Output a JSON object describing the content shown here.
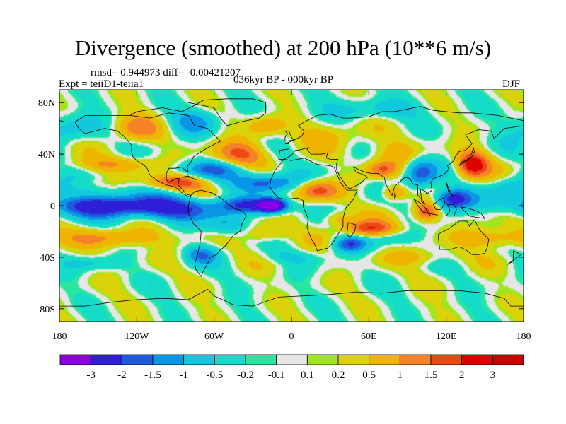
{
  "title": "Divergence (smoothed) at 200 hPa (10**6 m/s)",
  "stats": "rmsd= 0.944973 diff= -0.00421207",
  "experiment": "Expt = teiiD1-teiia1",
  "period": "036kyr BP - 000kyr BP",
  "season": "DJF",
  "map": {
    "projection": "cylindrical-equidistant",
    "lon_range": [
      -180,
      180
    ],
    "lat_range": [
      -90,
      90
    ],
    "lat_ticks": [
      {
        "lat": 80,
        "label": "80N"
      },
      {
        "lat": 40,
        "label": "40N"
      },
      {
        "lat": 0,
        "label": "0"
      },
      {
        "lat": -40,
        "label": "40S"
      },
      {
        "lat": -80,
        "label": "80S"
      }
    ],
    "lon_ticks": [
      {
        "lon": -180,
        "label": "180"
      },
      {
        "lon": -120,
        "label": "120W"
      },
      {
        "lon": -60,
        "label": "60W"
      },
      {
        "lon": 0,
        "label": "0"
      },
      {
        "lon": 60,
        "label": "60E"
      },
      {
        "lon": 120,
        "label": "120E"
      },
      {
        "lon": 180,
        "label": "180"
      }
    ]
  },
  "colorbar": {
    "levels": [
      "-3",
      "-2",
      "-1.5",
      "-1",
      "-0.5",
      "-0.2",
      "-0.1",
      "0.1",
      "0.2",
      "0.5",
      "1",
      "1.5",
      "2",
      "3"
    ],
    "colors": [
      "#8a00e6",
      "#2f1ed8",
      "#1e5adc",
      "#0a96e6",
      "#12c8dc",
      "#14dcc8",
      "#28e6a0",
      "#e6e6e6",
      "#a0e61e",
      "#dcd20a",
      "#eeb400",
      "#f58228",
      "#ee4614",
      "#dc0000",
      "#c80000"
    ]
  },
  "field_blobs": [
    {
      "lon": -150,
      "lat": 0,
      "rlon": 40,
      "rlat": 8,
      "v": -2.4
    },
    {
      "lon": -95,
      "lat": -2,
      "rlon": 35,
      "rlat": 9,
      "v": -2.2
    },
    {
      "lon": -30,
      "lat": 0,
      "rlon": 28,
      "rlat": 6,
      "v": -2.0
    },
    {
      "lon": -15,
      "lat": 0,
      "rlon": 10,
      "rlat": 5,
      "v": -3.2
    },
    {
      "lon": -90,
      "lat": 18,
      "rlon": 22,
      "rlat": 6,
      "v": 1.8
    },
    {
      "lon": -20,
      "lat": 18,
      "rlon": 25,
      "rlat": 7,
      "v": -1.8
    },
    {
      "lon": 20,
      "lat": 12,
      "rlon": 16,
      "rlat": 8,
      "v": 1.6
    },
    {
      "lon": -60,
      "lat": 28,
      "rlon": 30,
      "rlat": 7,
      "v": -1.3
    },
    {
      "lon": -40,
      "lat": 40,
      "rlon": 20,
      "rlat": 10,
      "v": 1.6
    },
    {
      "lon": -140,
      "lat": 32,
      "rlon": 30,
      "rlat": 6,
      "v": 1.0
    },
    {
      "lon": -150,
      "lat": 12,
      "rlon": 30,
      "rlat": 5,
      "v": -0.4
    },
    {
      "lon": -170,
      "lat": 60,
      "rlon": 22,
      "rlat": 12,
      "v": -0.8
    },
    {
      "lon": -120,
      "lat": 60,
      "rlon": 20,
      "rlat": 10,
      "v": 1.1
    },
    {
      "lon": -75,
      "lat": 65,
      "rlon": 18,
      "rlat": 10,
      "v": -1.1
    },
    {
      "lon": -20,
      "lat": 62,
      "rlon": 15,
      "rlat": 8,
      "v": 0.9
    },
    {
      "lon": 30,
      "lat": 55,
      "rlon": 25,
      "rlat": 10,
      "v": 0.7
    },
    {
      "lon": 80,
      "lat": 40,
      "rlon": 20,
      "rlat": 10,
      "v": 0.8
    },
    {
      "lon": 60,
      "lat": 75,
      "rlon": 40,
      "rlat": 8,
      "v": -0.7
    },
    {
      "lon": 100,
      "lat": 25,
      "rlon": 12,
      "rlat": 12,
      "v": -1.8
    },
    {
      "lon": 125,
      "lat": 5,
      "rlon": 15,
      "rlat": 8,
      "v": -2.6
    },
    {
      "lon": 140,
      "lat": 32,
      "rlon": 12,
      "rlat": 10,
      "v": 2.4
    },
    {
      "lon": 105,
      "lat": -5,
      "rlon": 10,
      "rlat": 8,
      "v": 2.0
    },
    {
      "lon": 80,
      "lat": 10,
      "rlon": 10,
      "rlat": 6,
      "v": 1.5
    },
    {
      "lon": 70,
      "lat": 28,
      "rlon": 12,
      "rlat": 6,
      "v": 1.3
    },
    {
      "lon": 35,
      "lat": -10,
      "rlon": 12,
      "rlat": 6,
      "v": 1.0
    },
    {
      "lon": 60,
      "lat": -18,
      "rlon": 20,
      "rlat": 6,
      "v": 1.8
    },
    {
      "lon": 45,
      "lat": -30,
      "rlon": 12,
      "rlat": 6,
      "v": -1.8
    },
    {
      "lon": 160,
      "lat": -25,
      "rlon": 25,
      "rlat": 8,
      "v": 1.2
    },
    {
      "lon": 170,
      "lat": 15,
      "rlon": 15,
      "rlat": 8,
      "v": -0.8
    },
    {
      "lon": -130,
      "lat": -25,
      "rlon": 30,
      "rlat": 7,
      "v": 1.2
    },
    {
      "lon": -50,
      "lat": -15,
      "rlon": 15,
      "rlat": 8,
      "v": -1.1
    },
    {
      "lon": -20,
      "lat": -22,
      "rlon": 16,
      "rlat": 7,
      "v": 1.0
    },
    {
      "lon": -70,
      "lat": -38,
      "rlon": 12,
      "rlat": 7,
      "v": -1.3
    },
    {
      "lon": -150,
      "lat": -45,
      "rlon": 25,
      "rlat": 5,
      "v": -0.5
    },
    {
      "lon": 0,
      "lat": -40,
      "rlon": 25,
      "rlat": 5,
      "v": -0.4
    },
    {
      "lon": 100,
      "lat": -40,
      "rlon": 30,
      "rlat": 6,
      "v": 0.6
    },
    {
      "lon": 80,
      "lat": -25,
      "rlon": 20,
      "rlat": 5,
      "v": -0.5
    }
  ],
  "coastlines": [
    [
      [
        -168,
        65
      ],
      [
        -160,
        70
      ],
      [
        -140,
        70
      ],
      [
        -125,
        70
      ],
      [
        -110,
        68
      ],
      [
        -95,
        72
      ],
      [
        -80,
        70
      ],
      [
        -75,
        62
      ],
      [
        -65,
        60
      ],
      [
        -60,
        55
      ],
      [
        -55,
        50
      ],
      [
        -65,
        45
      ],
      [
        -70,
        42
      ],
      [
        -76,
        38
      ],
      [
        -78,
        34
      ],
      [
        -81,
        30
      ],
      [
        -80,
        26
      ],
      [
        -82,
        27
      ],
      [
        -85,
        30
      ],
      [
        -90,
        29
      ],
      [
        -95,
        29
      ],
      [
        -97,
        25
      ],
      [
        -97,
        20
      ],
      [
        -95,
        18
      ],
      [
        -90,
        21
      ],
      [
        -87,
        21
      ],
      [
        -88,
        16
      ],
      [
        -84,
        12
      ],
      [
        -82,
        9
      ],
      [
        -78,
        8
      ],
      [
        -80,
        7
      ],
      [
        -85,
        10
      ],
      [
        -88,
        13
      ],
      [
        -92,
        15
      ],
      [
        -97,
        16
      ],
      [
        -105,
        20
      ],
      [
        -110,
        24
      ],
      [
        -112,
        29
      ],
      [
        -115,
        32
      ],
      [
        -117,
        33
      ],
      [
        -120,
        35
      ],
      [
        -123,
        38
      ],
      [
        -124,
        42
      ],
      [
        -124,
        47
      ],
      [
        -130,
        54
      ],
      [
        -135,
        58
      ],
      [
        -145,
        60
      ],
      [
        -152,
        58
      ],
      [
        -160,
        56
      ],
      [
        -165,
        60
      ],
      [
        -168,
        65
      ]
    ],
    [
      [
        -78,
        8
      ],
      [
        -75,
        11
      ],
      [
        -70,
        12
      ],
      [
        -62,
        10
      ],
      [
        -55,
        6
      ],
      [
        -50,
        2
      ],
      [
        -45,
        -2
      ],
      [
        -38,
        -4
      ],
      [
        -35,
        -8
      ],
      [
        -38,
        -13
      ],
      [
        -40,
        -20
      ],
      [
        -45,
        -23
      ],
      [
        -48,
        -27
      ],
      [
        -52,
        -32
      ],
      [
        -56,
        -35
      ],
      [
        -58,
        -38
      ],
      [
        -63,
        -40
      ],
      [
        -65,
        -45
      ],
      [
        -68,
        -50
      ],
      [
        -70,
        -55
      ],
      [
        -74,
        -50
      ],
      [
        -75,
        -45
      ],
      [
        -73,
        -38
      ],
      [
        -71,
        -30
      ],
      [
        -70,
        -20
      ],
      [
        -76,
        -14
      ],
      [
        -80,
        -6
      ],
      [
        -80,
        0
      ],
      [
        -78,
        8
      ]
    ],
    [
      [
        -17,
        15
      ],
      [
        -16,
        20
      ],
      [
        -13,
        27
      ],
      [
        -9,
        32
      ],
      [
        -6,
        36
      ],
      [
        0,
        35
      ],
      [
        10,
        37
      ],
      [
        20,
        32
      ],
      [
        30,
        31
      ],
      [
        33,
        30
      ],
      [
        35,
        25
      ],
      [
        38,
        18
      ],
      [
        43,
        12
      ],
      [
        51,
        12
      ],
      [
        48,
        5
      ],
      [
        42,
        -2
      ],
      [
        40,
        -10
      ],
      [
        40,
        -16
      ],
      [
        35,
        -24
      ],
      [
        32,
        -29
      ],
      [
        28,
        -33
      ],
      [
        20,
        -35
      ],
      [
        18,
        -30
      ],
      [
        15,
        -25
      ],
      [
        12,
        -17
      ],
      [
        13,
        -10
      ],
      [
        9,
        -1
      ],
      [
        9,
        4
      ],
      [
        5,
        6
      ],
      [
        -5,
        5
      ],
      [
        -10,
        6
      ],
      [
        -13,
        9
      ],
      [
        -17,
        15
      ]
    ],
    [
      [
        -10,
        36
      ],
      [
        -9,
        43
      ],
      [
        -2,
        44
      ],
      [
        -2,
        48
      ],
      [
        -5,
        48
      ],
      [
        2,
        51
      ],
      [
        8,
        54
      ],
      [
        10,
        58
      ],
      [
        5,
        62
      ],
      [
        12,
        66
      ],
      [
        20,
        70
      ],
      [
        30,
        71
      ],
      [
        40,
        68
      ],
      [
        45,
        68
      ],
      [
        60,
        69
      ],
      [
        70,
        73
      ],
      [
        80,
        73
      ],
      [
        90,
        75
      ],
      [
        100,
        77
      ],
      [
        110,
        74
      ],
      [
        130,
        72
      ],
      [
        140,
        72
      ],
      [
        160,
        70
      ],
      [
        170,
        68
      ],
      [
        180,
        66
      ]
    ],
    [
      [
        -180,
        66
      ],
      [
        -175,
        65
      ],
      [
        -168,
        65
      ]
    ],
    [
      [
        180,
        62
      ],
      [
        165,
        60
      ],
      [
        160,
        55
      ],
      [
        157,
        52
      ],
      [
        155,
        58
      ],
      [
        145,
        59
      ],
      [
        135,
        55
      ],
      [
        140,
        48
      ],
      [
        135,
        43
      ],
      [
        130,
        42
      ],
      [
        127,
        38
      ],
      [
        126,
        35
      ],
      [
        121,
        31
      ],
      [
        122,
        28
      ],
      [
        118,
        24
      ],
      [
        110,
        21
      ],
      [
        108,
        18
      ],
      [
        109,
        12
      ],
      [
        105,
        9
      ],
      [
        104,
        11
      ],
      [
        100,
        13
      ],
      [
        101,
        3
      ],
      [
        104,
        1
      ],
      [
        98,
        8
      ],
      [
        98,
        16
      ],
      [
        94,
        17
      ],
      [
        92,
        21
      ],
      [
        88,
        22
      ],
      [
        80,
        15
      ],
      [
        78,
        8
      ],
      [
        73,
        17
      ],
      [
        72,
        22
      ],
      [
        67,
        25
      ],
      [
        62,
        25
      ],
      [
        57,
        26
      ],
      [
        52,
        28
      ],
      [
        48,
        30
      ],
      [
        50,
        26
      ],
      [
        56,
        24
      ],
      [
        59,
        22
      ],
      [
        53,
        17
      ],
      [
        45,
        13
      ],
      [
        42,
        16
      ],
      [
        38,
        22
      ],
      [
        35,
        28
      ],
      [
        35,
        33
      ],
      [
        36,
        36
      ],
      [
        30,
        36
      ],
      [
        27,
        37
      ],
      [
        28,
        41
      ],
      [
        23,
        40
      ],
      [
        20,
        40
      ],
      [
        15,
        40
      ],
      [
        12,
        44
      ],
      [
        13,
        45
      ],
      [
        9,
        44
      ],
      [
        5,
        43
      ],
      [
        3,
        43
      ],
      [
        0,
        39
      ],
      [
        -6,
        36
      ],
      [
        -10,
        36
      ]
    ],
    [
      [
        -125,
        70
      ],
      [
        -120,
        73
      ],
      [
        -100,
        76
      ],
      [
        -85,
        73
      ],
      [
        -75,
        78
      ],
      [
        -68,
        82
      ],
      [
        -50,
        83
      ],
      [
        -30,
        83
      ],
      [
        -20,
        80
      ],
      [
        -20,
        72
      ],
      [
        -25,
        68
      ],
      [
        -40,
        65
      ],
      [
        -50,
        62
      ],
      [
        -55,
        68
      ],
      [
        -60,
        76
      ],
      [
        -70,
        78
      ],
      [
        -80,
        80
      ]
    ],
    [
      [
        -5,
        50
      ],
      [
        -5,
        53
      ],
      [
        -3,
        56
      ],
      [
        -5,
        58
      ],
      [
        -2,
        58
      ],
      [
        0,
        53
      ],
      [
        2,
        51
      ],
      [
        -5,
        50
      ]
    ],
    [
      [
        130,
        31
      ],
      [
        132,
        34
      ],
      [
        136,
        35
      ],
      [
        140,
        38
      ],
      [
        142,
        42
      ],
      [
        141,
        45
      ],
      [
        140,
        41
      ],
      [
        138,
        37
      ],
      [
        134,
        34
      ],
      [
        130,
        31
      ]
    ],
    [
      [
        95,
        5
      ],
      [
        100,
        2
      ],
      [
        104,
        -2
      ],
      [
        106,
        -6
      ],
      [
        102,
        -5
      ],
      [
        98,
        0
      ],
      [
        95,
        5
      ]
    ],
    [
      [
        106,
        -6
      ],
      [
        112,
        -7
      ],
      [
        114,
        -8
      ],
      [
        108,
        -8
      ],
      [
        106,
        -6
      ]
    ],
    [
      [
        110,
        1
      ],
      [
        114,
        4
      ],
      [
        118,
        6
      ],
      [
        119,
        2
      ],
      [
        116,
        -3
      ],
      [
        112,
        -3
      ],
      [
        110,
        1
      ]
    ],
    [
      [
        131,
        -1
      ],
      [
        137,
        -2
      ],
      [
        143,
        -4
      ],
      [
        147,
        -6
      ],
      [
        150,
        -10
      ],
      [
        143,
        -9
      ],
      [
        138,
        -8
      ],
      [
        134,
        -4
      ],
      [
        131,
        -1
      ]
    ],
    [
      [
        114,
        -22
      ],
      [
        122,
        -18
      ],
      [
        130,
        -12
      ],
      [
        136,
        -12
      ],
      [
        138,
        -16
      ],
      [
        142,
        -11
      ],
      [
        146,
        -19
      ],
      [
        153,
        -26
      ],
      [
        152,
        -32
      ],
      [
        150,
        -37
      ],
      [
        145,
        -38
      ],
      [
        140,
        -38
      ],
      [
        135,
        -34
      ],
      [
        130,
        -32
      ],
      [
        123,
        -34
      ],
      [
        115,
        -34
      ],
      [
        114,
        -26
      ],
      [
        114,
        -22
      ]
    ],
    [
      [
        172,
        -35
      ],
      [
        178,
        -38
      ],
      [
        174,
        -41
      ],
      [
        167,
        -46
      ],
      [
        172,
        -43
      ],
      [
        172,
        -35
      ]
    ],
    [
      [
        44,
        -13
      ],
      [
        50,
        -15
      ],
      [
        49,
        -20
      ],
      [
        45,
        -25
      ],
      [
        43,
        -22
      ],
      [
        44,
        -13
      ]
    ],
    [
      [
        80,
        10
      ],
      [
        81,
        7
      ],
      [
        80,
        6
      ],
      [
        80,
        10
      ]
    ],
    [
      [
        -85,
        22
      ],
      [
        -78,
        22
      ],
      [
        -74,
        20
      ],
      [
        -80,
        23
      ],
      [
        -85,
        22
      ]
    ],
    [
      [
        -180,
        -78
      ],
      [
        -160,
        -78
      ],
      [
        -140,
        -75
      ],
      [
        -120,
        -73
      ],
      [
        -100,
        -72
      ],
      [
        -80,
        -73
      ],
      [
        -65,
        -65
      ],
      [
        -60,
        -70
      ],
      [
        -45,
        -77
      ],
      [
        -30,
        -78
      ],
      [
        -10,
        -71
      ],
      [
        10,
        -70
      ],
      [
        30,
        -69
      ],
      [
        50,
        -67
      ],
      [
        70,
        -68
      ],
      [
        90,
        -66
      ],
      [
        110,
        -66
      ],
      [
        130,
        -66
      ],
      [
        150,
        -68
      ],
      [
        165,
        -72
      ],
      [
        170,
        -78
      ],
      [
        180,
        -78
      ]
    ],
    [
      [
        120,
        -8
      ],
      [
        126,
        -8
      ],
      [
        128,
        -3
      ],
      [
        126,
        1
      ],
      [
        121,
        1
      ],
      [
        123,
        -4
      ],
      [
        120,
        -8
      ]
    ],
    [
      [
        120,
        18
      ],
      [
        122,
        13
      ],
      [
        124,
        9
      ],
      [
        126,
        7
      ],
      [
        122,
        10
      ],
      [
        120,
        18
      ]
    ]
  ]
}
